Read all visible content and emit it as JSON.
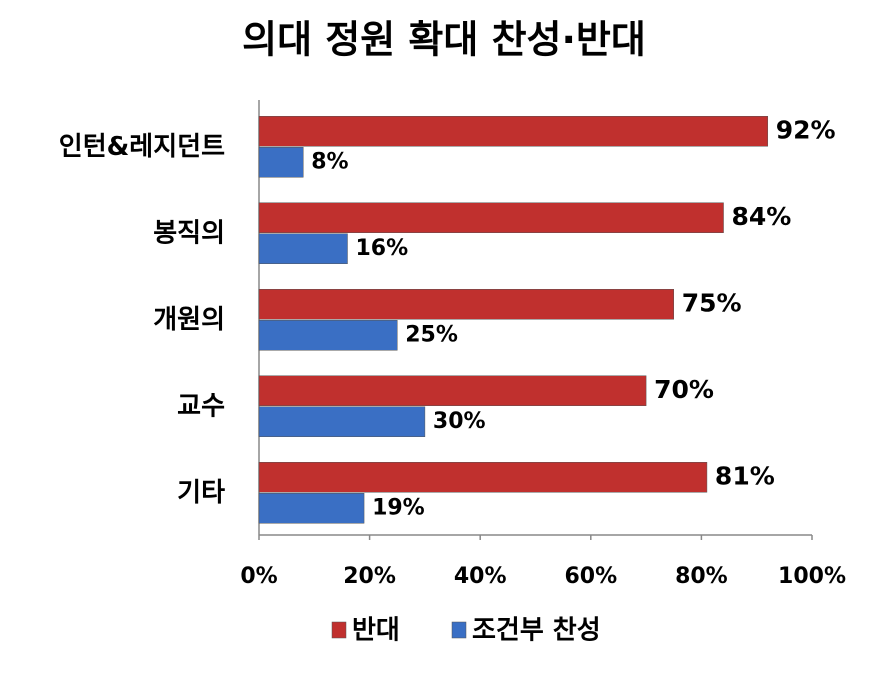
{
  "chart_data": {
    "type": "hbar",
    "title": "의대 정원 확대 찬성·반대",
    "categories": [
      "인턴&레지던트",
      "봉직의",
      "개원의",
      "교수",
      "기타"
    ],
    "series": [
      {
        "name": "반대",
        "color": "#c0302e",
        "values": [
          92,
          84,
          75,
          70,
          81
        ],
        "value_labels": [
          "92%",
          "84%",
          "75%",
          "70%",
          "81%"
        ]
      },
      {
        "name": "조건부 찬성",
        "color": "#3a6fc4",
        "values": [
          8,
          16,
          25,
          30,
          19
        ],
        "value_labels": [
          "8%",
          "16%",
          "25%",
          "30%",
          "19%"
        ]
      }
    ],
    "xlim": [
      0,
      100
    ],
    "xticks": [
      {
        "value": 0,
        "label": "0%"
      },
      {
        "value": 20,
        "label": "20%"
      },
      {
        "value": 40,
        "label": "40%"
      },
      {
        "value": 60,
        "label": "60%"
      },
      {
        "value": 80,
        "label": "80%"
      },
      {
        "value": 100,
        "label": "100%"
      }
    ],
    "grid": false,
    "legend": "bottom"
  }
}
